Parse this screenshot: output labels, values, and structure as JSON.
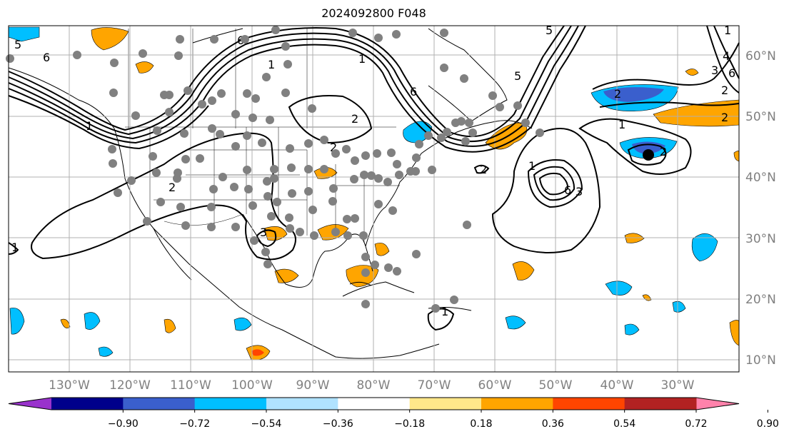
{
  "title": "2024092800 F048",
  "latitude_labels": [
    {
      "value": 60,
      "label": "60°N"
    },
    {
      "value": 50,
      "label": "50°N"
    },
    {
      "value": 40,
      "label": "40°N"
    },
    {
      "value": 30,
      "label": "30°N"
    },
    {
      "value": 20,
      "label": "20°N"
    },
    {
      "value": 10,
      "label": "10°N"
    }
  ],
  "longitude_labels": [
    {
      "value": -130,
      "label": "130°W"
    },
    {
      "value": -120,
      "label": "120°W"
    },
    {
      "value": -110,
      "label": "110°W"
    },
    {
      "value": -100,
      "label": "100°W"
    },
    {
      "value": -90,
      "label": "90°W"
    },
    {
      "value": -80,
      "label": "80°W"
    },
    {
      "value": -70,
      "label": "70°W"
    },
    {
      "value": -60,
      "label": "60°W"
    },
    {
      "value": -50,
      "label": "50°W"
    },
    {
      "value": -40,
      "label": "40°W"
    },
    {
      "value": -30,
      "label": "30°W"
    }
  ],
  "colorbar": {
    "colors": [
      "#9932CC",
      "#00008B",
      "#3A5FCD",
      "#00BFFF",
      "#B0E2FF",
      "#FFFFFF",
      "#FFE78A",
      "#FFA500",
      "#FF4500",
      "#B22222",
      "#FF82AB"
    ],
    "tick_labels": [
      "−0.90",
      "−0.72",
      "−0.54",
      "−0.36",
      "−0.18",
      "0.18",
      "0.36",
      "0.54",
      "0.72",
      "0.90"
    ]
  },
  "contour_labels": [
    "5",
    "6",
    "1",
    "6",
    "2",
    "1",
    "2",
    "3",
    "6",
    "1",
    "2",
    "2",
    "2",
    "2",
    "1",
    "6",
    "5",
    "3",
    "1",
    "1",
    "2",
    "1",
    "3",
    "4",
    "6",
    "5",
    "2",
    "1"
  ],
  "colors": {
    "grid": "#b0b0b0",
    "coast": "#000000",
    "station": "#808080",
    "positive": "#FFA500",
    "negative": "#00BFFF"
  }
}
